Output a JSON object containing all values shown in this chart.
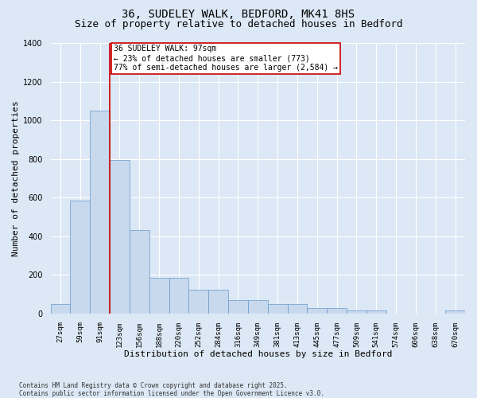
{
  "title1": "36, SUDELEY WALK, BEDFORD, MK41 8HS",
  "title2": "Size of property relative to detached houses in Bedford",
  "xlabel": "Distribution of detached houses by size in Bedford",
  "ylabel": "Number of detached properties",
  "categories": [
    "27sqm",
    "59sqm",
    "91sqm",
    "123sqm",
    "156sqm",
    "188sqm",
    "220sqm",
    "252sqm",
    "284sqm",
    "316sqm",
    "349sqm",
    "381sqm",
    "413sqm",
    "445sqm",
    "477sqm",
    "509sqm",
    "541sqm",
    "574sqm",
    "606sqm",
    "638sqm",
    "670sqm"
  ],
  "values": [
    50,
    585,
    1050,
    795,
    430,
    185,
    185,
    125,
    125,
    70,
    70,
    50,
    50,
    27,
    27,
    14,
    14,
    0,
    0,
    0,
    14
  ],
  "bar_color": "#c8d9ed",
  "bar_edge_color": "#6699cc",
  "vline_color": "#cc0000",
  "vline_x": 2.5,
  "annotation_text": "36 SUDELEY WALK: 97sqm\n← 23% of detached houses are smaller (773)\n77% of semi-detached houses are larger (2,584) →",
  "annotation_box_facecolor": "#ffffff",
  "annotation_box_edgecolor": "#cc0000",
  "ylim": [
    0,
    1400
  ],
  "yticks": [
    0,
    200,
    400,
    600,
    800,
    1000,
    1200,
    1400
  ],
  "background_color": "#dce8f5",
  "grid_color": "#ffffff",
  "footnote": "Contains HM Land Registry data © Crown copyright and database right 2025.\nContains public sector information licensed under the Open Government Licence v3.0.",
  "title_fontsize": 10,
  "subtitle_fontsize": 9,
  "tick_fontsize": 6.5,
  "label_fontsize": 8,
  "annot_fontsize": 7,
  "footnote_fontsize": 5.5
}
